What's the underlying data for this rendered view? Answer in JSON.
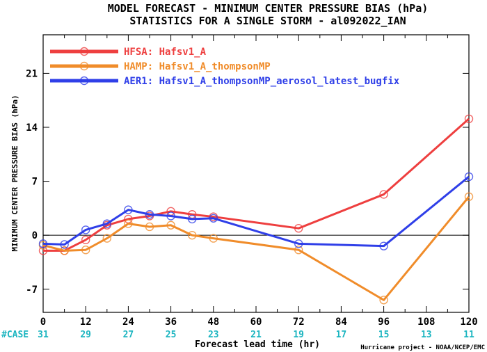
{
  "chart_data": {
    "type": "line",
    "title": "MODEL FORECAST - MINIMUM CENTER PRESSURE BIAS (hPa)",
    "subtitle": "STATISTICS FOR A SINGLE STORM - al092022_IAN",
    "xlabel": "Forecast lead time (hr)",
    "ylabel": "MINIMUM CENTER PRESSURE BIAS (hPa)",
    "x": [
      0,
      6,
      12,
      18,
      24,
      30,
      36,
      42,
      48,
      72,
      96,
      120
    ],
    "xlim": [
      0,
      120
    ],
    "ylim": [
      -10,
      26
    ],
    "xticks": [
      0,
      12,
      24,
      36,
      48,
      60,
      72,
      84,
      96,
      108,
      120
    ],
    "yticks": [
      -7,
      0,
      7,
      14,
      21
    ],
    "zero_line": true,
    "legend_position": "top-left",
    "series": [
      {
        "name": "HFSA: Hafsv1_A",
        "color": "#ee3f3f",
        "values": [
          -2.0,
          -2.0,
          -0.6,
          1.3,
          2.1,
          2.5,
          3.1,
          2.7,
          2.4,
          0.9,
          5.3,
          15.1
        ]
      },
      {
        "name": "HAMP: Hafsv1_A_thompsonMP",
        "color": "#f08c2a",
        "values": [
          -1.3,
          -2.0,
          -1.9,
          -0.4,
          1.5,
          1.1,
          1.3,
          0.0,
          -0.4,
          -1.9,
          -8.4,
          5.0
        ]
      },
      {
        "name": "AER1: Hafsv1_A_thompsonMP_aerosol_latest_bugfix",
        "color": "#2f3fe8",
        "values": [
          -1.1,
          -1.2,
          0.7,
          1.5,
          3.3,
          2.7,
          2.5,
          2.1,
          2.2,
          -1.1,
          -1.4,
          7.6
        ]
      }
    ],
    "case_label": "#CASE",
    "case_ticks": [
      0,
      12,
      24,
      36,
      48,
      60,
      72,
      84,
      96,
      108,
      120
    ],
    "case_counts": [
      "31",
      "29",
      "27",
      "25",
      "23",
      "21",
      "19",
      "17",
      "15",
      "13",
      "11"
    ],
    "credit": "Hurricane project - NOAA/NCEP/EMC"
  }
}
